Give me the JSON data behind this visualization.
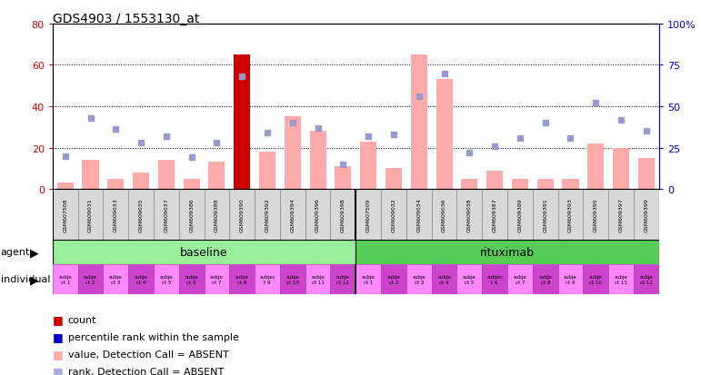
{
  "title": "GDS4903 / 1553130_at",
  "samples": [
    "GSM607508",
    "GSM609031",
    "GSM609033",
    "GSM609035",
    "GSM609037",
    "GSM609386",
    "GSM609388",
    "GSM609390",
    "GSM609392",
    "GSM609394",
    "GSM609396",
    "GSM609398",
    "GSM607509",
    "GSM609032",
    "GSM609034",
    "GSM609036",
    "GSM609038",
    "GSM609387",
    "GSM609389",
    "GSM609391",
    "GSM609393",
    "GSM609395",
    "GSM609397",
    "GSM609399"
  ],
  "bar_values": [
    3,
    14,
    5,
    8,
    14,
    5,
    13,
    65,
    18,
    35,
    28,
    11,
    23,
    10,
    65,
    53,
    5,
    9,
    5,
    5,
    5,
    22,
    20,
    15
  ],
  "bar_colors": [
    "#ffaaaa",
    "#ffaaaa",
    "#ffaaaa",
    "#ffaaaa",
    "#ffaaaa",
    "#ffaaaa",
    "#ffaaaa",
    "#cc0000",
    "#ffaaaa",
    "#ffaaaa",
    "#ffaaaa",
    "#ffaaaa",
    "#ffaaaa",
    "#ffaaaa",
    "#ffaaaa",
    "#ffaaaa",
    "#ffaaaa",
    "#ffaaaa",
    "#ffaaaa",
    "#ffaaaa",
    "#ffaaaa",
    "#ffaaaa",
    "#ffaaaa",
    "#ffaaaa"
  ],
  "rank_values": [
    20,
    43,
    36,
    28,
    32,
    19,
    28,
    68,
    34,
    40,
    37,
    15,
    32,
    33,
    56,
    70,
    22,
    26,
    31,
    40,
    31,
    52,
    42,
    35
  ],
  "agent_groups": [
    {
      "label": "baseline",
      "start": 0,
      "end": 12,
      "color": "#99ee99"
    },
    {
      "label": "rituximab",
      "start": 12,
      "end": 24,
      "color": "#55cc55"
    }
  ],
  "individual_labels": [
    "subje\nct 1",
    "subje\nct 2",
    "subje\nct 3",
    "subje\nct 4",
    "subje\nct 5",
    "subje\nct 6",
    "subje\nct 7",
    "subje\nct 8",
    "subjec\nt 9",
    "subje\nct 10",
    "subje\nct 11",
    "subje\nct 12",
    "subje\nct 1",
    "subje\nct 2",
    "subje\nct 3",
    "subje\nct 4",
    "subje\nct 5",
    "subjec\nt 6",
    "subje\nct 7",
    "subje\nct 8",
    "subje\nct 9",
    "subje\nct 10",
    "subje\nct 11",
    "subje\nct 12"
  ],
  "individual_colors": [
    "#ff88ff",
    "#cc44cc",
    "#ff88ff",
    "#cc44cc",
    "#ff88ff",
    "#cc44cc",
    "#ff88ff",
    "#cc44cc",
    "#ff88ff",
    "#cc44cc",
    "#ff88ff",
    "#cc44cc",
    "#ff88ff",
    "#cc44cc",
    "#ff88ff",
    "#cc44cc",
    "#ff88ff",
    "#cc44cc",
    "#ff88ff",
    "#cc44cc",
    "#ff88ff",
    "#cc44cc",
    "#ff88ff",
    "#cc44cc"
  ],
  "ylim_left": [
    0,
    80
  ],
  "ylim_right": [
    0,
    100
  ],
  "yticks_left": [
    0,
    20,
    40,
    60,
    80
  ],
  "ytick_labels_left": [
    "0",
    "20",
    "40",
    "60",
    "80"
  ],
  "yticks_right": [
    0,
    25,
    50,
    75,
    100
  ],
  "ytick_labels_right": [
    "0",
    "25",
    "50",
    "75",
    "100%"
  ],
  "background_color": "#ffffff",
  "left_axis_color": "#cc0000",
  "right_axis_color": "#0000cc",
  "legend_items": [
    {
      "color": "#cc0000",
      "label": "count"
    },
    {
      "color": "#0000cc",
      "label": "percentile rank within the sample"
    },
    {
      "color": "#ffaaaa",
      "label": "value, Detection Call = ABSENT"
    },
    {
      "color": "#aaaadd",
      "label": "rank, Detection Call = ABSENT"
    }
  ]
}
